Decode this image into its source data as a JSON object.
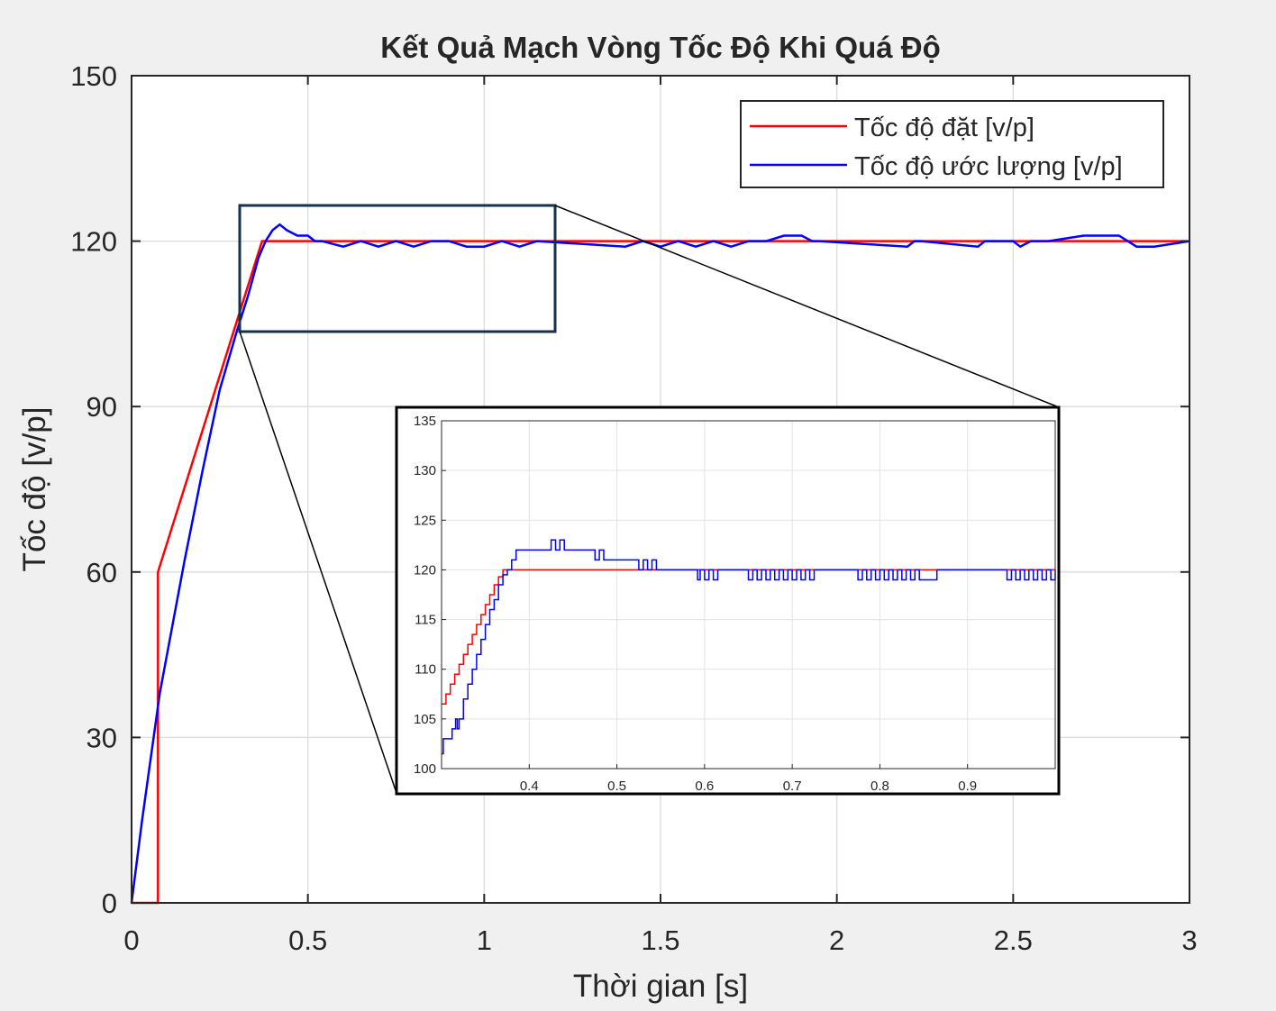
{
  "chart_data": {
    "type": "line",
    "title": "Kết Quả Mạch Vòng Tốc Độ Khi Quá Độ",
    "xlabel": "Thời gian [s]",
    "ylabel": "Tốc độ [v/p]",
    "xlim": [
      0,
      3
    ],
    "ylim": [
      0,
      150
    ],
    "xticks": [
      0,
      0.5,
      1,
      1.5,
      2,
      2.5,
      3
    ],
    "xtick_labels": [
      "0",
      "0.5",
      "1",
      "1.5",
      "2",
      "2.5",
      "3"
    ],
    "yticks": [
      0,
      30,
      60,
      90,
      120,
      150
    ],
    "ytick_labels": [
      "0",
      "30",
      "60",
      "90",
      "120",
      "150"
    ],
    "grid": true,
    "legend_position": "top-right",
    "series": [
      {
        "name": "Tốc độ đặt [v/p]",
        "color": "#ff0000",
        "x": [
          0,
          0.075,
          0.075,
          0.37,
          3.0
        ],
        "y": [
          0,
          0,
          60,
          120,
          120
        ]
      },
      {
        "name": "Tốc độ ước lượng [v/p]",
        "color": "#0000ff",
        "x": [
          0,
          0.03,
          0.08,
          0.15,
          0.2,
          0.25,
          0.3,
          0.33,
          0.36,
          0.38,
          0.4,
          0.42,
          0.44,
          0.47,
          0.5,
          0.52,
          0.54,
          0.6,
          0.65,
          0.7,
          0.75,
          0.8,
          0.85,
          0.9,
          0.95,
          1.0,
          1.05,
          1.1,
          1.15,
          1.4,
          1.45,
          1.5,
          1.55,
          1.6,
          1.65,
          1.7,
          1.75,
          1.8,
          1.85,
          1.9,
          1.93,
          1.95,
          2.2,
          2.22,
          2.24,
          2.4,
          2.42,
          2.5,
          2.52,
          2.55,
          2.6,
          2.7,
          2.8,
          2.85,
          2.9,
          3.0
        ],
        "y": [
          0,
          15,
          38,
          62,
          78,
          93,
          104,
          110,
          117,
          120,
          122,
          123,
          122,
          121,
          121,
          120,
          120,
          119,
          120,
          119,
          120,
          119,
          120,
          120,
          119,
          119,
          120,
          119,
          120,
          119,
          120,
          119,
          120,
          119,
          120,
          119,
          120,
          120,
          121,
          121,
          120,
          120,
          119,
          120,
          120,
          119,
          120,
          120,
          119,
          120,
          120,
          121,
          121,
          119,
          119,
          120
        ]
      }
    ],
    "inset": {
      "xlim": [
        0.3,
        1.0
      ],
      "ylim": [
        100,
        135
      ],
      "xticks": [
        0.4,
        0.5,
        0.6,
        0.7,
        0.8,
        0.9
      ],
      "xtick_labels": [
        "0.4",
        "0.5",
        "0.6",
        "0.7",
        "0.8",
        "0.9"
      ],
      "yticks": [
        100,
        105,
        110,
        115,
        120,
        125,
        130,
        135
      ],
      "ytick_labels": [
        "100",
        "105",
        "110",
        "115",
        "120",
        "125",
        "130",
        "135"
      ],
      "grid": true,
      "series": [
        {
          "name": "Tốc độ đặt [v/p]",
          "color": "#ff0000",
          "x": [
            0.3,
            0.305,
            0.31,
            0.315,
            0.32,
            0.325,
            0.33,
            0.335,
            0.34,
            0.345,
            0.35,
            0.355,
            0.36,
            0.365,
            0.37,
            1.0
          ],
          "y": [
            106.5,
            107.5,
            108.5,
            109.5,
            110.5,
            111.5,
            112.5,
            113.5,
            114.5,
            115.5,
            116.5,
            117.5,
            118.5,
            119.3,
            120,
            120
          ]
        },
        {
          "name": "Tốc độ ước lượng [v/p]",
          "color": "#0000ff",
          "x": [
            0.3,
            0.302,
            0.31,
            0.312,
            0.316,
            0.318,
            0.32,
            0.325,
            0.33,
            0.335,
            0.34,
            0.345,
            0.35,
            0.355,
            0.36,
            0.365,
            0.37,
            0.375,
            0.38,
            0.385,
            0.39,
            0.4,
            0.42,
            0.425,
            0.43,
            0.435,
            0.44,
            0.47,
            0.475,
            0.48,
            0.485,
            0.49,
            0.52,
            0.525,
            0.53,
            0.535,
            0.54,
            0.545,
            0.59,
            0.592,
            0.595,
            0.6,
            0.605,
            0.61,
            0.615,
            0.65,
            0.655,
            0.66,
            0.665,
            0.67,
            0.675,
            0.68,
            0.685,
            0.69,
            0.695,
            0.7,
            0.705,
            0.71,
            0.715,
            0.72,
            0.725,
            0.73,
            0.77,
            0.775,
            0.78,
            0.785,
            0.79,
            0.795,
            0.8,
            0.805,
            0.81,
            0.815,
            0.82,
            0.825,
            0.83,
            0.835,
            0.84,
            0.845,
            0.86,
            0.865,
            0.94,
            0.945,
            0.95,
            0.955,
            0.96,
            0.965,
            0.97,
            0.975,
            0.98,
            0.985,
            0.99,
            0.995,
            1.0
          ],
          "y": [
            101.5,
            103,
            103,
            104,
            105,
            104,
            105,
            107,
            108.5,
            110,
            111.5,
            113,
            114.5,
            116,
            117,
            118.5,
            119.5,
            120,
            121,
            122,
            122,
            122,
            122,
            123,
            122,
            123,
            122,
            122,
            121,
            122,
            121,
            121,
            121,
            120,
            121,
            120,
            121,
            120,
            120,
            119,
            120,
            119,
            120,
            119,
            120,
            119,
            120,
            119,
            120,
            119,
            120,
            119,
            120,
            119,
            120,
            119,
            120,
            119,
            120,
            119,
            120,
            120,
            120,
            119,
            120,
            119,
            120,
            119,
            120,
            119,
            120,
            119,
            120,
            119,
            120,
            119,
            120,
            119,
            119,
            120,
            120,
            119,
            120,
            119,
            120,
            119,
            120,
            119,
            120,
            119,
            120,
            119,
            120
          ]
        }
      ]
    }
  }
}
